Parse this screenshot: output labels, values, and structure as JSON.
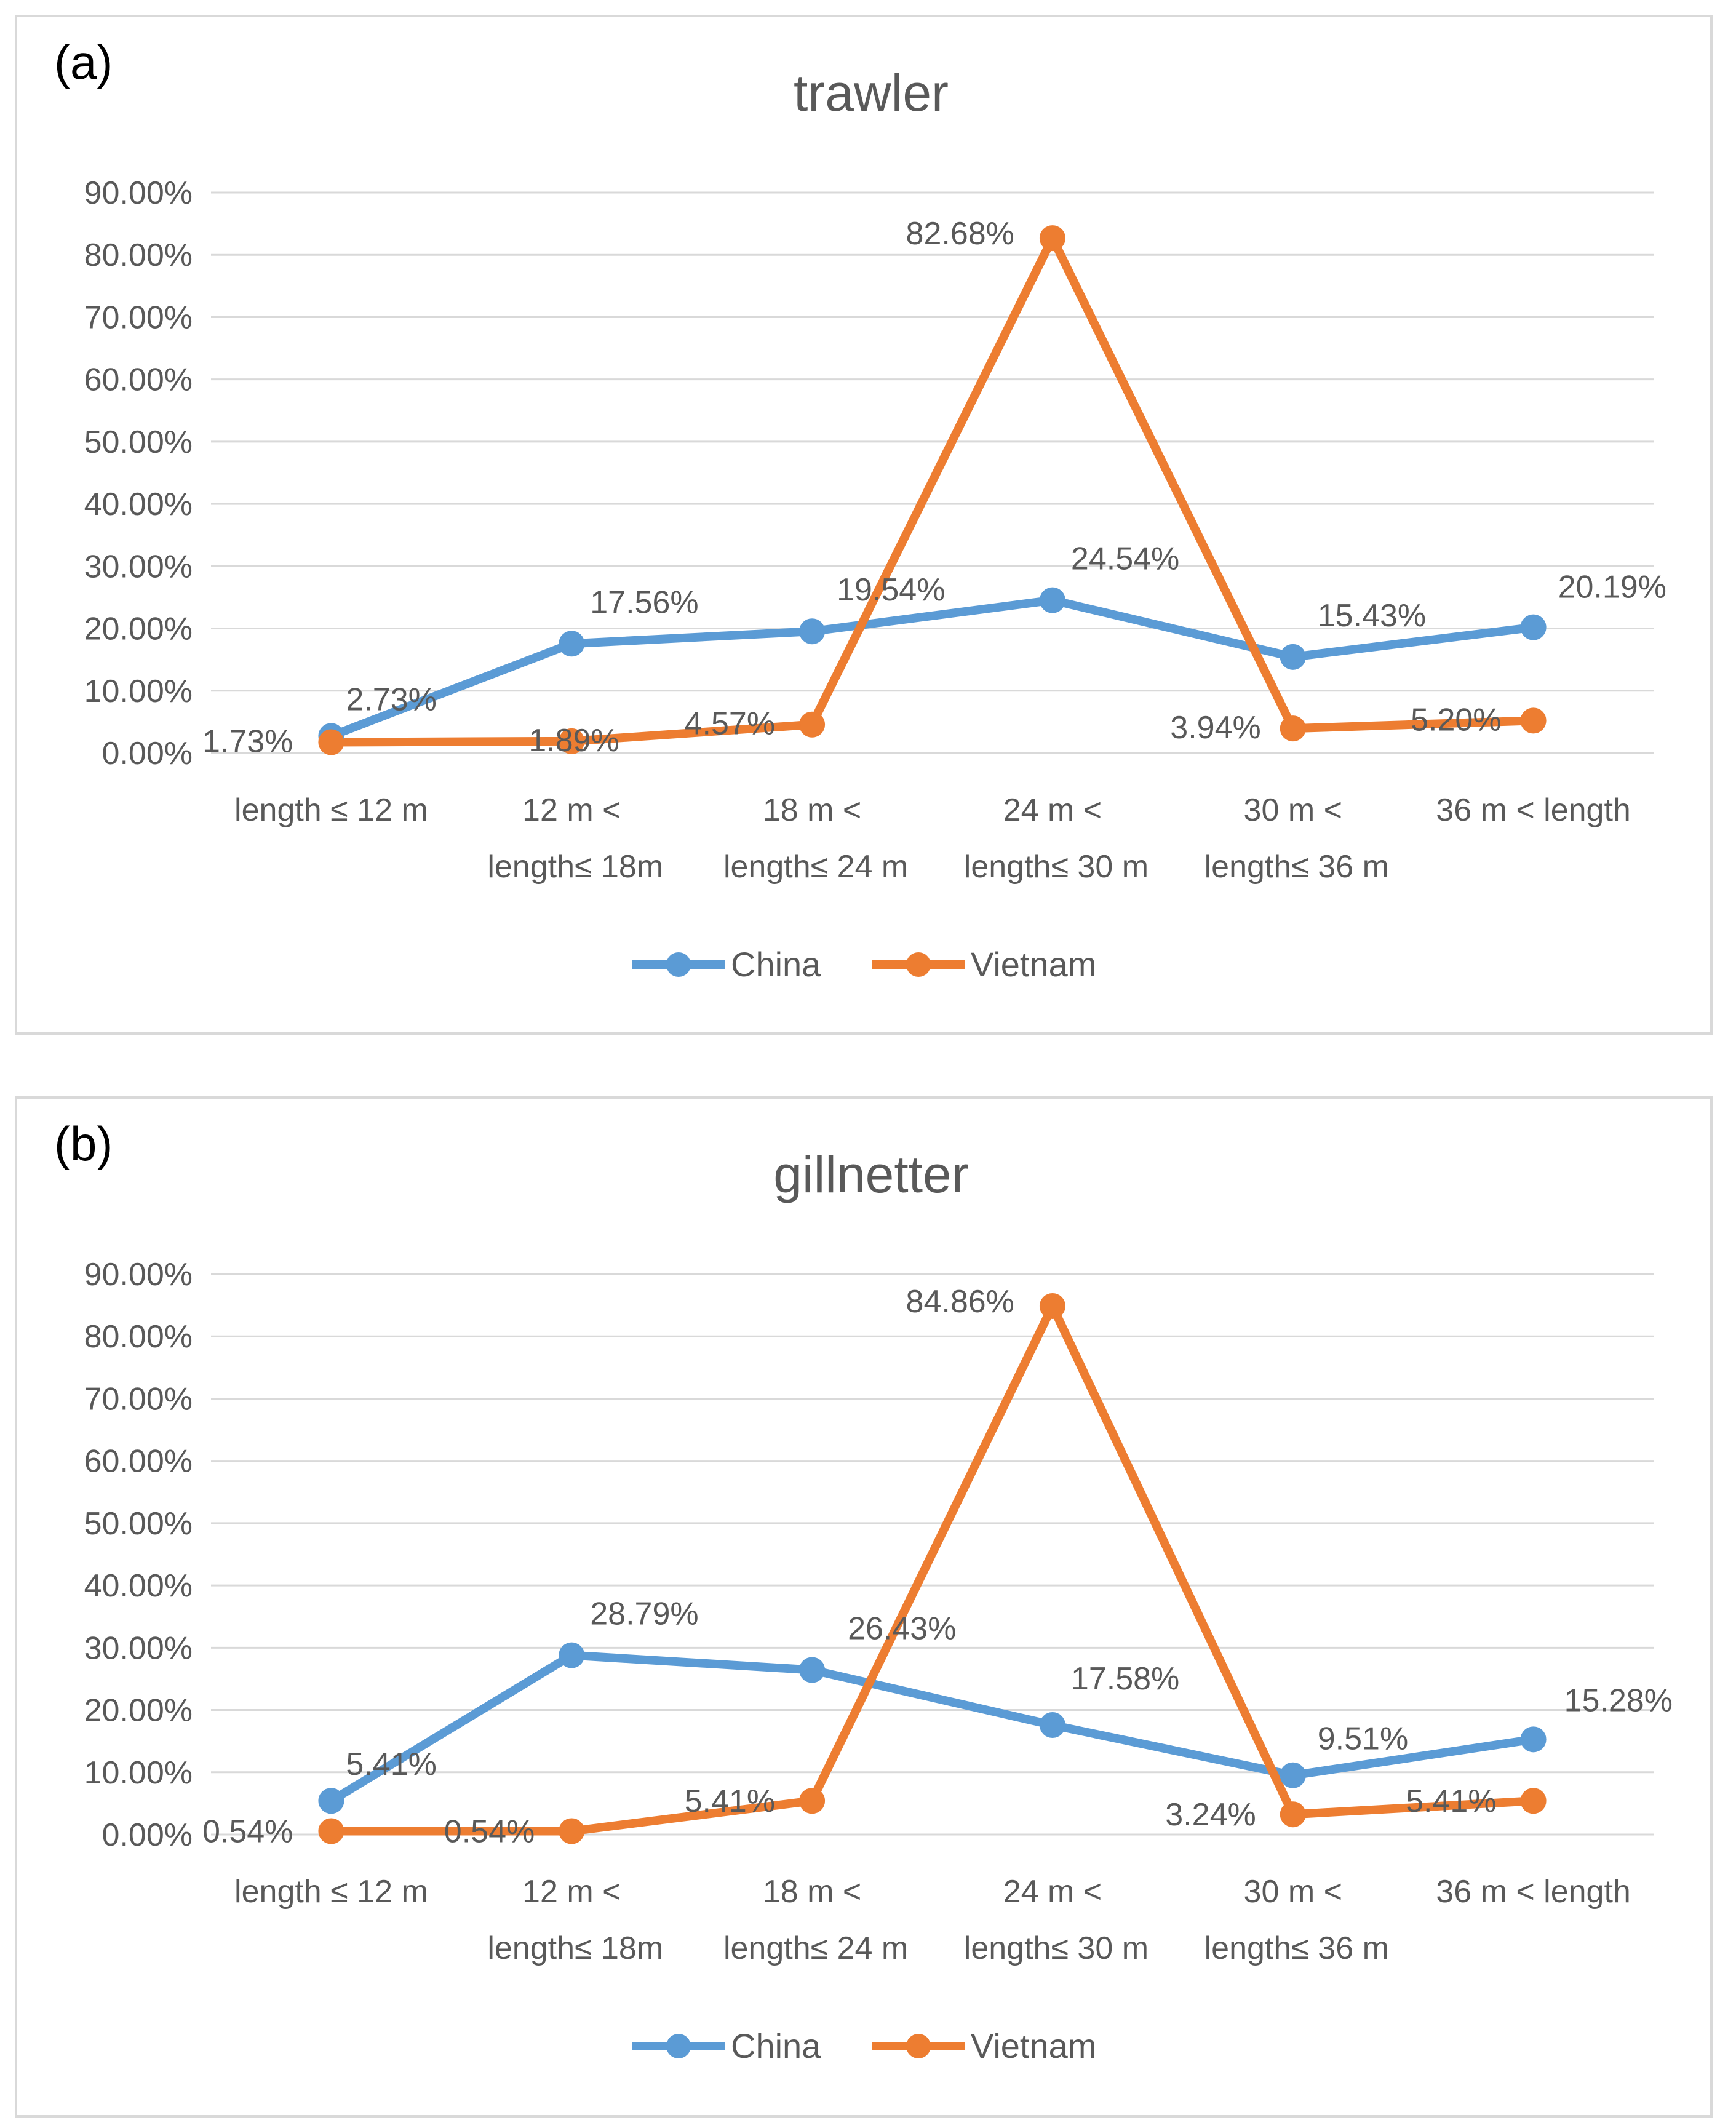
{
  "colors": {
    "china": "#5b9bd5",
    "vietnam": "#ed7d31",
    "grid": "#d9d9d9",
    "text": "#595959",
    "panel_label": "#000000"
  },
  "legend_icon": "line-with-circle-marker",
  "chart_data": [
    {
      "type": "line",
      "panel_label": "(a)",
      "title": "trawler",
      "categories": [
        [
          "length ≤ 12 m"
        ],
        [
          "12 m <",
          "length≤ 18m"
        ],
        [
          "18 m <",
          "length≤ 24 m"
        ],
        [
          "24 m <",
          "length≤ 30 m"
        ],
        [
          "30 m <",
          "length≤ 36 m"
        ],
        [
          "36 m < length"
        ]
      ],
      "yticks": [
        "0.00%",
        "10.00%",
        "20.00%",
        "30.00%",
        "40.00%",
        "50.00%",
        "60.00%",
        "70.00%",
        "80.00%",
        "90.00%"
      ],
      "ylim": [
        0,
        90
      ],
      "grid": true,
      "legend_position": "bottom",
      "series": [
        {
          "name": "China",
          "color": "#5b9bd5",
          "values": [
            2.73,
            17.56,
            19.54,
            24.54,
            15.43,
            20.19
          ],
          "labels": [
            "2.73%",
            "17.56%",
            "19.54%",
            "24.54%",
            "15.43%",
            "20.19%"
          ]
        },
        {
          "name": "Vietnam",
          "color": "#ed7d31",
          "values": [
            1.73,
            1.89,
            4.57,
            82.68,
            3.94,
            5.2
          ],
          "labels": [
            "1.73%",
            "1.89%",
            "4.57%",
            "82.68%",
            "3.94%",
            "5.20%"
          ]
        }
      ]
    },
    {
      "type": "line",
      "panel_label": "(b)",
      "title": "gillnetter",
      "categories": [
        [
          "length ≤ 12 m"
        ],
        [
          "12 m <",
          "length≤ 18m"
        ],
        [
          "18 m <",
          "length≤ 24 m"
        ],
        [
          "24 m <",
          "length≤ 30 m"
        ],
        [
          "30 m <",
          "length≤ 36 m"
        ],
        [
          "36 m < length"
        ]
      ],
      "yticks": [
        "0.00%",
        "10.00%",
        "20.00%",
        "30.00%",
        "40.00%",
        "50.00%",
        "60.00%",
        "70.00%",
        "80.00%",
        "90.00%"
      ],
      "ylim": [
        0,
        90
      ],
      "grid": true,
      "legend_position": "bottom",
      "series": [
        {
          "name": "China",
          "color": "#5b9bd5",
          "values": [
            5.41,
            28.79,
            26.43,
            17.58,
            9.51,
            15.28
          ],
          "labels": [
            "5.41%",
            "28.79%",
            "26.43%",
            "17.58%",
            "9.51%",
            "15.28%"
          ]
        },
        {
          "name": "Vietnam",
          "color": "#ed7d31",
          "values": [
            0.54,
            0.54,
            5.41,
            84.86,
            3.24,
            5.41
          ],
          "labels": [
            "0.54%",
            "0.54%",
            "5.41%",
            "84.86%",
            "3.24%",
            "5.41%"
          ]
        }
      ]
    }
  ]
}
